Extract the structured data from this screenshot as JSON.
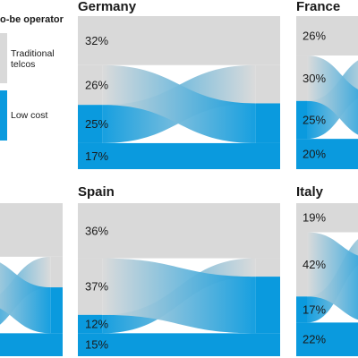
{
  "legend": {
    "title": "o-be operator",
    "items": [
      {
        "label_lines": [
          "Traditional",
          "telcos"
        ],
        "color": "#d9d9d9"
      },
      {
        "label_lines": [
          "Low cost"
        ],
        "color": "#0a9ade"
      }
    ]
  },
  "colors": {
    "traditional": "#d9d9d9",
    "low_cost": "#0a9ade"
  },
  "chart_data": [
    {
      "type": "sankey",
      "title": "Germany",
      "segments": [
        {
          "label": "32%",
          "value": 32,
          "kind": "traditional-stay"
        },
        {
          "label": "26%",
          "value": 26,
          "kind": "traditional-switch"
        },
        {
          "label": "25%",
          "value": 25,
          "kind": "lowcost-switch"
        },
        {
          "label": "17%",
          "value": 17,
          "kind": "lowcost-stay"
        }
      ]
    },
    {
      "type": "sankey",
      "title": "France",
      "segments": [
        {
          "label": "26%",
          "value": 26,
          "kind": "traditional-stay"
        },
        {
          "label": "30%",
          "value": 30,
          "kind": "traditional-switch"
        },
        {
          "label": "25%",
          "value": 25,
          "kind": "lowcost-switch"
        },
        {
          "label": "20%",
          "value": 20,
          "kind": "lowcost-stay"
        }
      ]
    },
    {
      "type": "sankey",
      "title": "Spain",
      "segments": [
        {
          "label": "36%",
          "value": 36,
          "kind": "traditional-stay"
        },
        {
          "label": "37%",
          "value": 37,
          "kind": "traditional-switch"
        },
        {
          "label": "12%",
          "value": 12,
          "kind": "lowcost-switch"
        },
        {
          "label": "15%",
          "value": 15,
          "kind": "lowcost-stay"
        }
      ]
    },
    {
      "type": "sankey",
      "title": "Italy",
      "segments": [
        {
          "label": "19%",
          "value": 19,
          "kind": "traditional-stay"
        },
        {
          "label": "42%",
          "value": 42,
          "kind": "traditional-switch"
        },
        {
          "label": "17%",
          "value": 17,
          "kind": "lowcost-switch"
        },
        {
          "label": "22%",
          "value": 22,
          "kind": "lowcost-stay"
        }
      ]
    },
    {
      "type": "sankey",
      "title": "",
      "segments": []
    }
  ]
}
